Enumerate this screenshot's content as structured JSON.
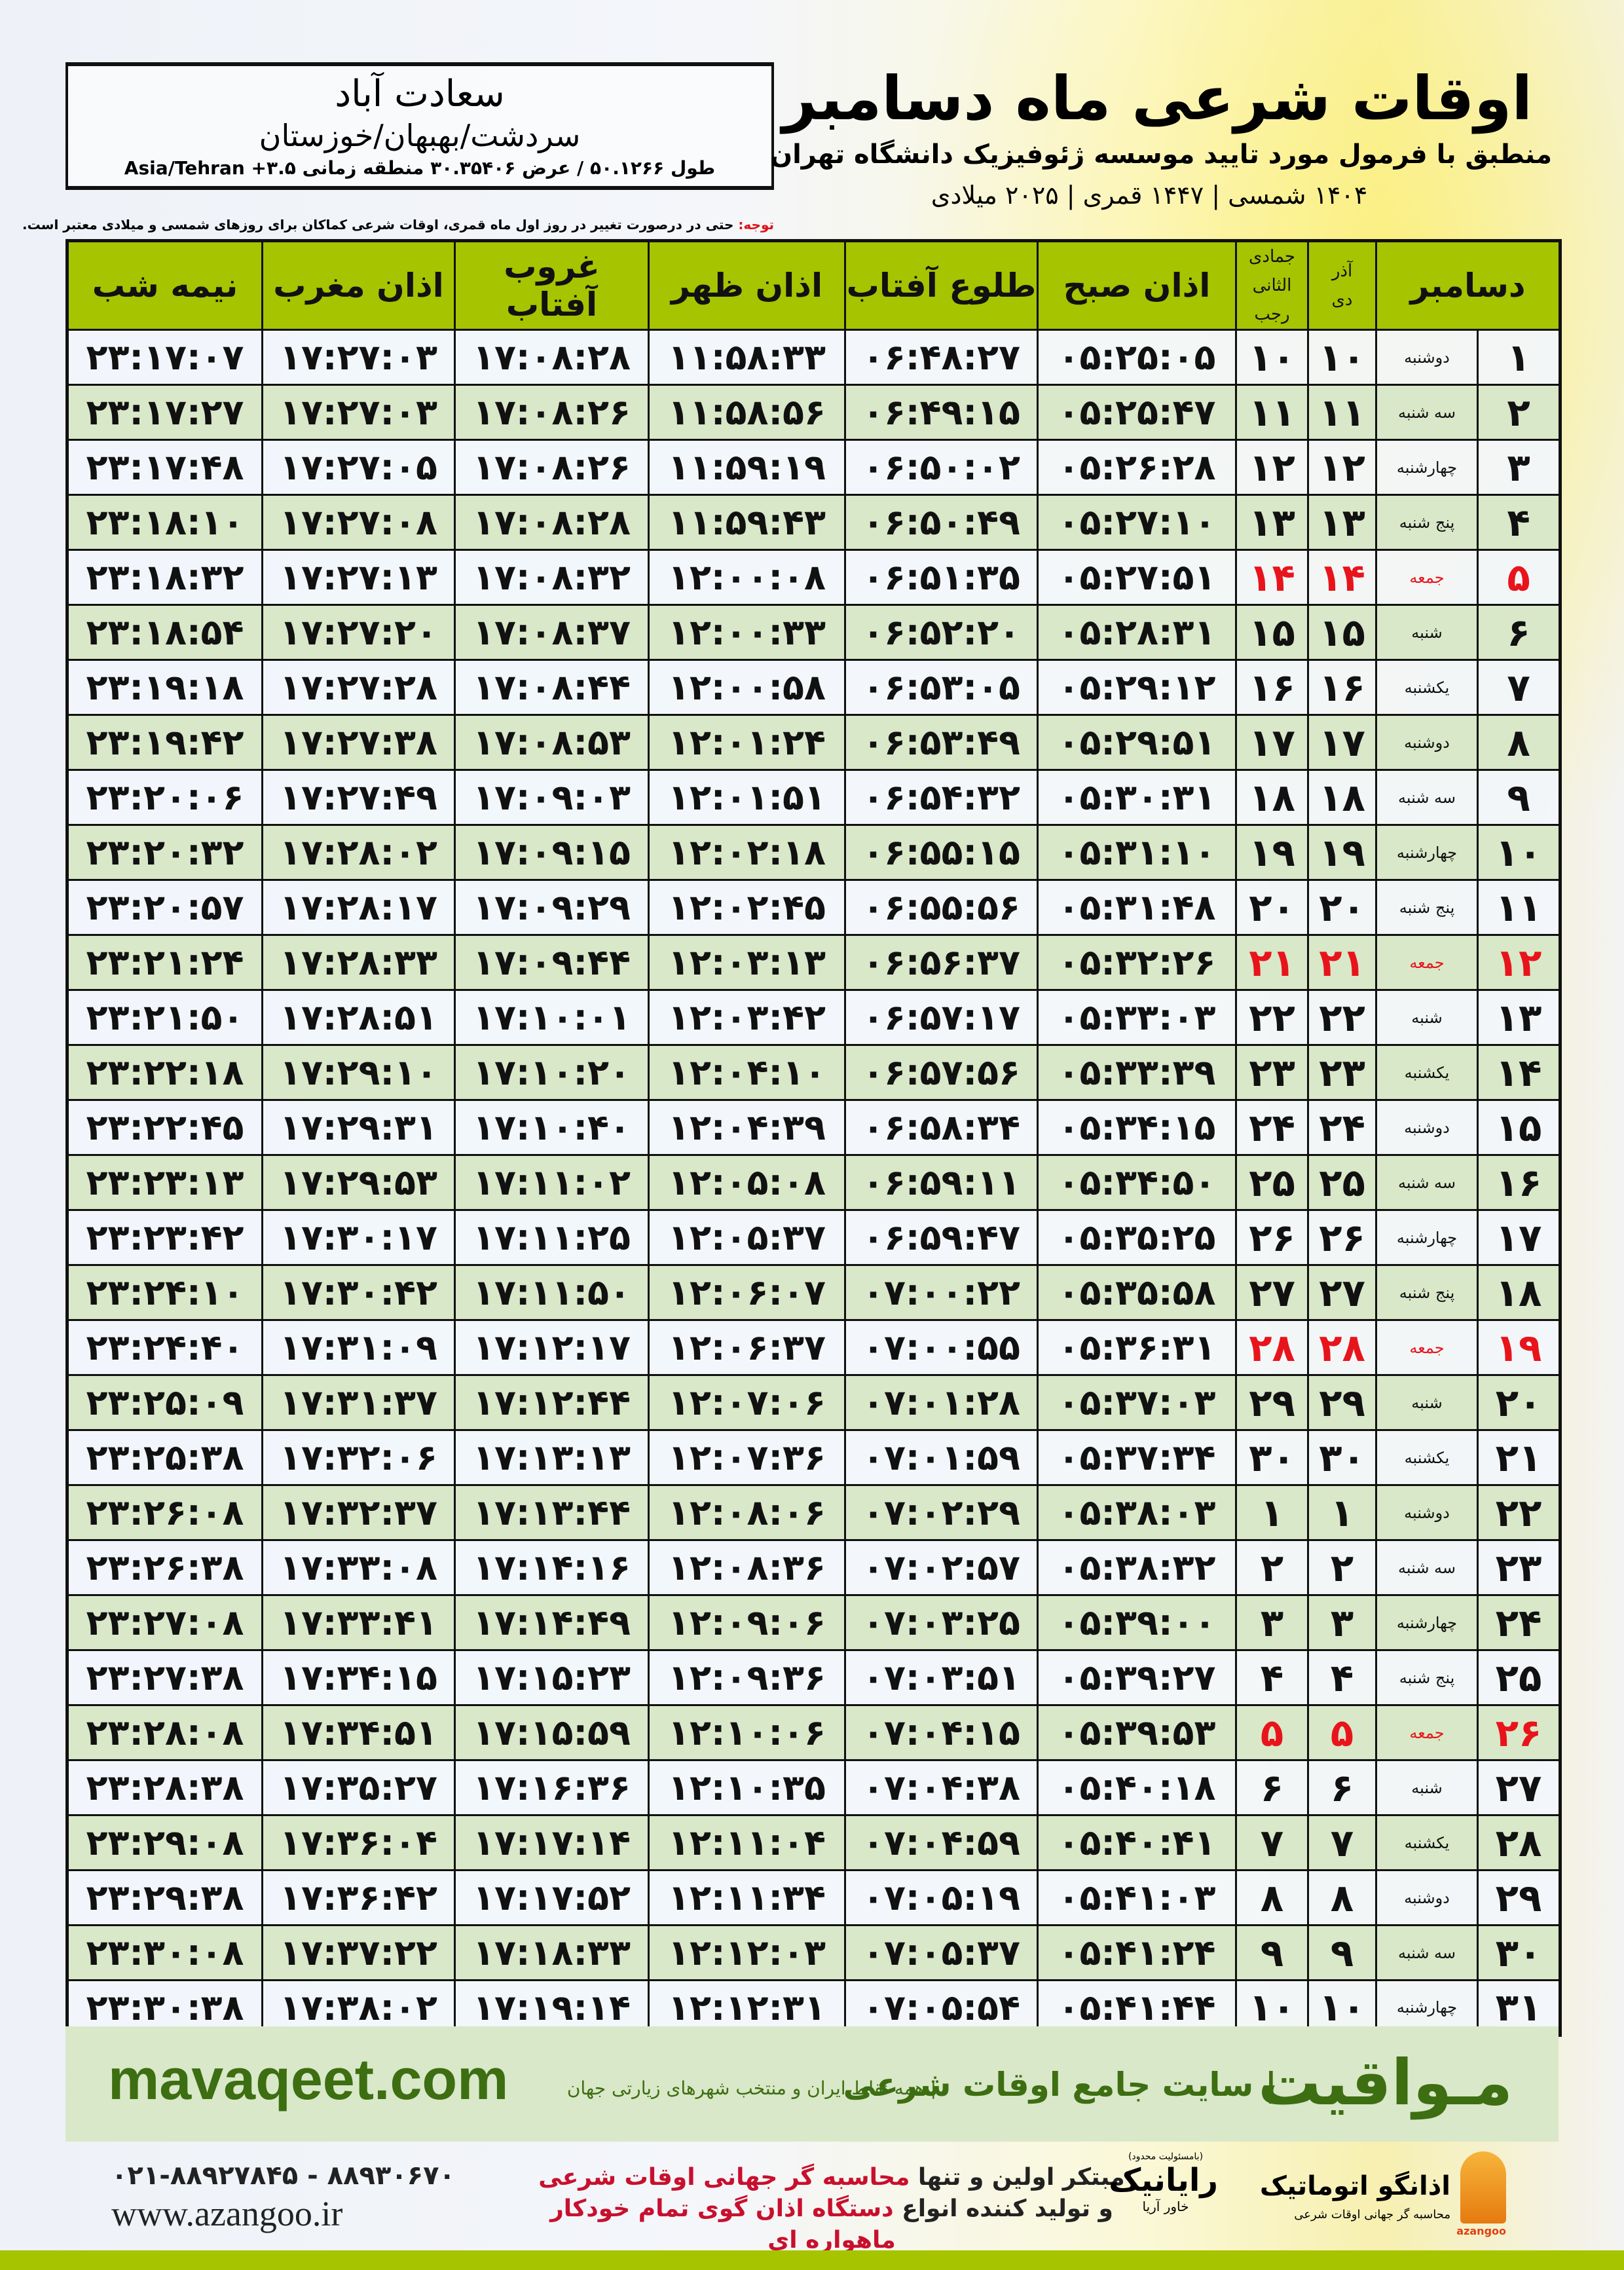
{
  "header": {
    "title": "اوقات شرعی ماه دسامبر",
    "subtitle": "منطبق با فرمول مورد تایید موسسه ژئوفیزیک دانشگاه تهران",
    "dates": "۱۴۰۴ شمسی | ۱۴۴۷ قمری | ۲۰۲۵ میلادی"
  },
  "location": {
    "city": "سعادت آباد",
    "region": "سردشت/بهبهان/خوزستان",
    "coords": "طول ۵۰.۱۲۶۶ / عرض ۳۰.۳۵۴۰۶ منطقه زمانی Asia/Tehran +۳.۵"
  },
  "note": {
    "label": "توجه:",
    "text": " حتی در درصورت تغییر در روز اول ماه قمری، اوقات شرعی کماکان برای روزهای شمسی و میلادی معتبر است."
  },
  "table": {
    "headers": {
      "gregorian": "دسامبر",
      "shamsi_top": "آذر",
      "shamsi_bottom": "دی",
      "hijri_top": "جمادی الثانی",
      "hijri_bottom": "رجب",
      "fajr": "اذان صبح",
      "sunrise": "طلوع آفتاب",
      "dhuhr": "اذان ظهر",
      "sunset": "غروب آفتاب",
      "maghrib": "اذان مغرب",
      "midnight": "نیمه شب"
    },
    "rows": [
      [
        "۱",
        "دوشنبه",
        "۱۰",
        "۱۰",
        "۰۵:۲۵:۰۵",
        "۰۶:۴۸:۲۷",
        "۱۱:۵۸:۳۳",
        "۱۷:۰۸:۲۸",
        "۱۷:۲۷:۰۳",
        "۲۳:۱۷:۰۷"
      ],
      [
        "۲",
        "سه شنبه",
        "۱۱",
        "۱۱",
        "۰۵:۲۵:۴۷",
        "۰۶:۴۹:۱۵",
        "۱۱:۵۸:۵۶",
        "۱۷:۰۸:۲۶",
        "۱۷:۲۷:۰۳",
        "۲۳:۱۷:۲۷"
      ],
      [
        "۳",
        "چهارشنبه",
        "۱۲",
        "۱۲",
        "۰۵:۲۶:۲۸",
        "۰۶:۵۰:۰۲",
        "۱۱:۵۹:۱۹",
        "۱۷:۰۸:۲۶",
        "۱۷:۲۷:۰۵",
        "۲۳:۱۷:۴۸"
      ],
      [
        "۴",
        "پنج شنبه",
        "۱۳",
        "۱۳",
        "۰۵:۲۷:۱۰",
        "۰۶:۵۰:۴۹",
        "۱۱:۵۹:۴۳",
        "۱۷:۰۸:۲۸",
        "۱۷:۲۷:۰۸",
        "۲۳:۱۸:۱۰"
      ],
      [
        "۵",
        "جمعه",
        "۱۴",
        "۱۴",
        "۰۵:۲۷:۵۱",
        "۰۶:۵۱:۳۵",
        "۱۲:۰۰:۰۸",
        "۱۷:۰۸:۳۲",
        "۱۷:۲۷:۱۳",
        "۲۳:۱۸:۳۲"
      ],
      [
        "۶",
        "شنبه",
        "۱۵",
        "۱۵",
        "۰۵:۲۸:۳۱",
        "۰۶:۵۲:۲۰",
        "۱۲:۰۰:۳۳",
        "۱۷:۰۸:۳۷",
        "۱۷:۲۷:۲۰",
        "۲۳:۱۸:۵۴"
      ],
      [
        "۷",
        "یکشنبه",
        "۱۶",
        "۱۶",
        "۰۵:۲۹:۱۲",
        "۰۶:۵۳:۰۵",
        "۱۲:۰۰:۵۸",
        "۱۷:۰۸:۴۴",
        "۱۷:۲۷:۲۸",
        "۲۳:۱۹:۱۸"
      ],
      [
        "۸",
        "دوشنبه",
        "۱۷",
        "۱۷",
        "۰۵:۲۹:۵۱",
        "۰۶:۵۳:۴۹",
        "۱۲:۰۱:۲۴",
        "۱۷:۰۸:۵۳",
        "۱۷:۲۷:۳۸",
        "۲۳:۱۹:۴۲"
      ],
      [
        "۹",
        "سه شنبه",
        "۱۸",
        "۱۸",
        "۰۵:۳۰:۳۱",
        "۰۶:۵۴:۳۲",
        "۱۲:۰۱:۵۱",
        "۱۷:۰۹:۰۳",
        "۱۷:۲۷:۴۹",
        "۲۳:۲۰:۰۶"
      ],
      [
        "۱۰",
        "چهارشنبه",
        "۱۹",
        "۱۹",
        "۰۵:۳۱:۱۰",
        "۰۶:۵۵:۱۵",
        "۱۲:۰۲:۱۸",
        "۱۷:۰۹:۱۵",
        "۱۷:۲۸:۰۲",
        "۲۳:۲۰:۳۲"
      ],
      [
        "۱۱",
        "پنج شنبه",
        "۲۰",
        "۲۰",
        "۰۵:۳۱:۴۸",
        "۰۶:۵۵:۵۶",
        "۱۲:۰۲:۴۵",
        "۱۷:۰۹:۲۹",
        "۱۷:۲۸:۱۷",
        "۲۳:۲۰:۵۷"
      ],
      [
        "۱۲",
        "جمعه",
        "۲۱",
        "۲۱",
        "۰۵:۳۲:۲۶",
        "۰۶:۵۶:۳۷",
        "۱۲:۰۳:۱۳",
        "۱۷:۰۹:۴۴",
        "۱۷:۲۸:۳۳",
        "۲۳:۲۱:۲۴"
      ],
      [
        "۱۳",
        "شنبه",
        "۲۲",
        "۲۲",
        "۰۵:۳۳:۰۳",
        "۰۶:۵۷:۱۷",
        "۱۲:۰۳:۴۲",
        "۱۷:۱۰:۰۱",
        "۱۷:۲۸:۵۱",
        "۲۳:۲۱:۵۰"
      ],
      [
        "۱۴",
        "یکشنبه",
        "۲۳",
        "۲۳",
        "۰۵:۳۳:۳۹",
        "۰۶:۵۷:۵۶",
        "۱۲:۰۴:۱۰",
        "۱۷:۱۰:۲۰",
        "۱۷:۲۹:۱۰",
        "۲۳:۲۲:۱۸"
      ],
      [
        "۱۵",
        "دوشنبه",
        "۲۴",
        "۲۴",
        "۰۵:۳۴:۱۵",
        "۰۶:۵۸:۳۴",
        "۱۲:۰۴:۳۹",
        "۱۷:۱۰:۴۰",
        "۱۷:۲۹:۳۱",
        "۲۳:۲۲:۴۵"
      ],
      [
        "۱۶",
        "سه شنبه",
        "۲۵",
        "۲۵",
        "۰۵:۳۴:۵۰",
        "۰۶:۵۹:۱۱",
        "۱۲:۰۵:۰۸",
        "۱۷:۱۱:۰۲",
        "۱۷:۲۹:۵۳",
        "۲۳:۲۳:۱۳"
      ],
      [
        "۱۷",
        "چهارشنبه",
        "۲۶",
        "۲۶",
        "۰۵:۳۵:۲۵",
        "۰۶:۵۹:۴۷",
        "۱۲:۰۵:۳۷",
        "۱۷:۱۱:۲۵",
        "۱۷:۳۰:۱۷",
        "۲۳:۲۳:۴۲"
      ],
      [
        "۱۸",
        "پنج شنبه",
        "۲۷",
        "۲۷",
        "۰۵:۳۵:۵۸",
        "۰۷:۰۰:۲۲",
        "۱۲:۰۶:۰۷",
        "۱۷:۱۱:۵۰",
        "۱۷:۳۰:۴۲",
        "۲۳:۲۴:۱۰"
      ],
      [
        "۱۹",
        "جمعه",
        "۲۸",
        "۲۸",
        "۰۵:۳۶:۳۱",
        "۰۷:۰۰:۵۵",
        "۱۲:۰۶:۳۷",
        "۱۷:۱۲:۱۷",
        "۱۷:۳۱:۰۹",
        "۲۳:۲۴:۴۰"
      ],
      [
        "۲۰",
        "شنبه",
        "۲۹",
        "۲۹",
        "۰۵:۳۷:۰۳",
        "۰۷:۰۱:۲۸",
        "۱۲:۰۷:۰۶",
        "۱۷:۱۲:۴۴",
        "۱۷:۳۱:۳۷",
        "۲۳:۲۵:۰۹"
      ],
      [
        "۲۱",
        "یکشنبه",
        "۳۰",
        "۳۰",
        "۰۵:۳۷:۳۴",
        "۰۷:۰۱:۵۹",
        "۱۲:۰۷:۳۶",
        "۱۷:۱۳:۱۳",
        "۱۷:۳۲:۰۶",
        "۲۳:۲۵:۳۸"
      ],
      [
        "۲۲",
        "دوشنبه",
        "۱",
        "۱",
        "۰۵:۳۸:۰۳",
        "۰۷:۰۲:۲۹",
        "۱۲:۰۸:۰۶",
        "۱۷:۱۳:۴۴",
        "۱۷:۳۲:۳۷",
        "۲۳:۲۶:۰۸"
      ],
      [
        "۲۳",
        "سه شنبه",
        "۲",
        "۲",
        "۰۵:۳۸:۳۲",
        "۰۷:۰۲:۵۷",
        "۱۲:۰۸:۳۶",
        "۱۷:۱۴:۱۶",
        "۱۷:۳۳:۰۸",
        "۲۳:۲۶:۳۸"
      ],
      [
        "۲۴",
        "چهارشنبه",
        "۳",
        "۳",
        "۰۵:۳۹:۰۰",
        "۰۷:۰۳:۲۵",
        "۱۲:۰۹:۰۶",
        "۱۷:۱۴:۴۹",
        "۱۷:۳۳:۴۱",
        "۲۳:۲۷:۰۸"
      ],
      [
        "۲۵",
        "پنج شنبه",
        "۴",
        "۴",
        "۰۵:۳۹:۲۷",
        "۰۷:۰۳:۵۱",
        "۱۲:۰۹:۳۶",
        "۱۷:۱۵:۲۳",
        "۱۷:۳۴:۱۵",
        "۲۳:۲۷:۳۸"
      ],
      [
        "۲۶",
        "جمعه",
        "۵",
        "۵",
        "۰۵:۳۹:۵۳",
        "۰۷:۰۴:۱۵",
        "۱۲:۱۰:۰۶",
        "۱۷:۱۵:۵۹",
        "۱۷:۳۴:۵۱",
        "۲۳:۲۸:۰۸"
      ],
      [
        "۲۷",
        "شنبه",
        "۶",
        "۶",
        "۰۵:۴۰:۱۸",
        "۰۷:۰۴:۳۸",
        "۱۲:۱۰:۳۵",
        "۱۷:۱۶:۳۶",
        "۱۷:۳۵:۲۷",
        "۲۳:۲۸:۳۸"
      ],
      [
        "۲۸",
        "یکشنبه",
        "۷",
        "۷",
        "۰۵:۴۰:۴۱",
        "۰۷:۰۴:۵۹",
        "۱۲:۱۱:۰۴",
        "۱۷:۱۷:۱۴",
        "۱۷:۳۶:۰۴",
        "۲۳:۲۹:۰۸"
      ],
      [
        "۲۹",
        "دوشنبه",
        "۸",
        "۸",
        "۰۵:۴۱:۰۳",
        "۰۷:۰۵:۱۹",
        "۱۲:۱۱:۳۴",
        "۱۷:۱۷:۵۲",
        "۱۷:۳۶:۴۲",
        "۲۳:۲۹:۳۸"
      ],
      [
        "۳۰",
        "سه شنبه",
        "۹",
        "۹",
        "۰۵:۴۱:۲۴",
        "۰۷:۰۵:۳۷",
        "۱۲:۱۲:۰۳",
        "۱۷:۱۸:۳۳",
        "۱۷:۳۷:۲۲",
        "۲۳:۳۰:۰۸"
      ],
      [
        "۳۱",
        "چهارشنبه",
        "۱۰",
        "۱۰",
        "۰۵:۴۱:۴۴",
        "۰۷:۰۵:۵۴",
        "۱۲:۱۲:۳۱",
        "۱۷:۱۹:۱۴",
        "۱۷:۳۸:۰۲",
        "۲۳:۳۰:۳۸"
      ]
    ]
  },
  "banner": {
    "brand": "مـواقیت",
    "tagline": "| سایت جامع اوقات شرعی",
    "scope": "| همه نقاط ایران و منتخب شهرهای زیارتی جهان",
    "site": "mavaqeet.com"
  },
  "footer": {
    "phone": "۰۲۱-۸۸۹۲۷۸۴۵ - ۸۸۹۳۰۶۷۰",
    "web": "www.azangoo.ir",
    "promo_line1_a": "مبتکر اولین و تنها ",
    "promo_line1_b": "محاسبه گر جهانی اوقات شرعی",
    "promo_line2_a": "و تولید کننده انواع ",
    "promo_line2_b": "دستگاه اذان گوی تمام خودکار ماهواره ای",
    "logo_rayanik": "رایانیک",
    "logo_rayanik_side": "خاور آریا",
    "logo_rayanik_tiny": "(بامسئولیت محدود)",
    "logo_azangoo": "اذانگو اتوماتیک",
    "logo_azangoo_tag": "محاسبه گر جهانی اوقات شرعی",
    "logo_azangoo_en": "azangoo"
  },
  "colors": {
    "header_green": "#a6c400",
    "row_green": "#d9e8c8",
    "brand_green": "#3d6e12",
    "holiday_red": "#e8141c"
  }
}
